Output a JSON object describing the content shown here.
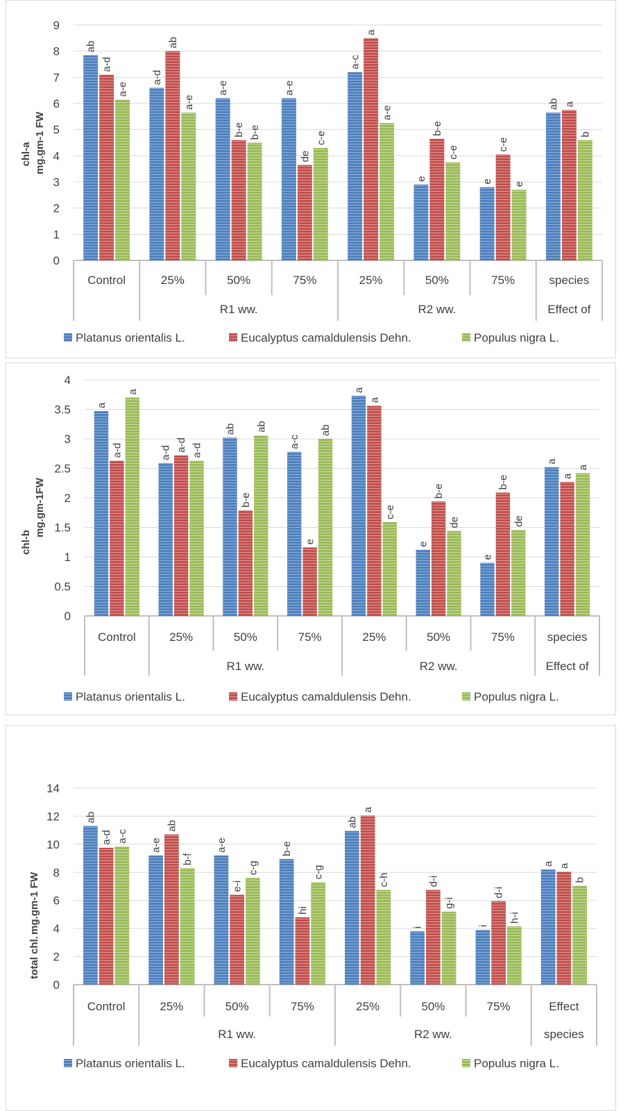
{
  "colors": {
    "platanus": "#4f81bd",
    "eucalyptus": "#c0504d",
    "populus": "#9bbb59"
  },
  "chart_data": [
    {
      "type": "bar",
      "ylabel": "chl-a",
      "unit": "mg.gm-1 FW",
      "ylim": [
        0,
        9
      ],
      "yticks": [
        0,
        1,
        2,
        3,
        4,
        5,
        6,
        7,
        8,
        9
      ],
      "categories": [
        "Control",
        "25%",
        "50%",
        "75%",
        "25%",
        "50%",
        "75%",
        "species"
      ],
      "groups": [
        {
          "label": "R1 ww.",
          "from": 1,
          "to": 3
        },
        {
          "label": "R2 ww.",
          "from": 4,
          "to": 6
        },
        {
          "label": "Effect of",
          "from": 7,
          "to": 7
        }
      ],
      "series": [
        {
          "name": "Platanus orientalis L.",
          "values": [
            7.85,
            6.6,
            6.2,
            6.2,
            7.2,
            2.9,
            2.8,
            5.65
          ],
          "labels": [
            "ab",
            "a-d",
            "a-e",
            "a-e",
            "a-c",
            "e",
            "e",
            "ab"
          ]
        },
        {
          "name": "Eucalyptus camaldulensis Dehn.",
          "values": [
            7.1,
            8.0,
            4.6,
            3.65,
            8.5,
            4.65,
            4.05,
            5.75
          ],
          "labels": [
            "a-d",
            "ab",
            "b-e",
            "de",
            "a",
            "b-e",
            "c-e",
            "a"
          ]
        },
        {
          "name": "Populus nigra L.",
          "values": [
            6.15,
            5.65,
            4.5,
            4.3,
            5.25,
            3.75,
            2.7,
            4.6
          ],
          "labels": [
            "a-e",
            "a-e",
            "b-e",
            "c-e",
            "a-e",
            "c-e",
            "e",
            "b"
          ]
        }
      ]
    },
    {
      "type": "bar",
      "ylabel": "chl-b",
      "unit": "mg.gm-1FW",
      "ylim": [
        0,
        4
      ],
      "yticks": [
        0,
        0.5,
        1,
        1.5,
        2,
        2.5,
        3,
        3.5,
        4
      ],
      "categories": [
        "Control",
        "25%",
        "50%",
        "75%",
        "25%",
        "50%",
        "75%",
        "species"
      ],
      "groups": [
        {
          "label": "R1 ww.",
          "from": 1,
          "to": 3
        },
        {
          "label": "R2 ww.",
          "from": 4,
          "to": 6
        },
        {
          "label": "Effect of",
          "from": 7,
          "to": 7
        }
      ],
      "series": [
        {
          "name": "Platanus orientalis L.",
          "values": [
            3.47,
            2.59,
            3.02,
            2.78,
            3.73,
            1.12,
            0.9,
            2.52
          ],
          "labels": [
            "a",
            "a-d",
            "ab",
            "a-c",
            "a",
            "e",
            "e",
            "a"
          ]
        },
        {
          "name": "Eucalyptus camaldulensis Dehn.",
          "values": [
            2.63,
            2.72,
            1.79,
            1.16,
            3.56,
            1.94,
            2.09,
            2.27
          ],
          "labels": [
            "a-d",
            "a-d",
            "b-e",
            "e",
            "a",
            "b-e",
            "b-e",
            "a"
          ]
        },
        {
          "name": "Populus nigra L.",
          "values": [
            3.7,
            2.63,
            3.06,
            3.0,
            1.59,
            1.44,
            1.46,
            2.42
          ],
          "labels": [
            "a",
            "a-d",
            "ab",
            "ab",
            "c-e",
            "de",
            "de",
            "a"
          ]
        }
      ]
    },
    {
      "type": "bar",
      "ylabel": "total chl.",
      "unit": "mg.gm-1 FW",
      "ylim": [
        0,
        14
      ],
      "yticks": [
        0,
        2,
        4,
        6,
        8,
        10,
        12,
        14
      ],
      "categories": [
        "Control",
        "25%",
        "50%",
        "75%",
        "25%",
        "50%",
        "75%",
        "Effect"
      ],
      "groups": [
        {
          "label": "R1 ww.",
          "from": 1,
          "to": 3
        },
        {
          "label": "R2 ww.",
          "from": 4,
          "to": 6
        },
        {
          "label": "species",
          "from": 7,
          "to": 7
        }
      ],
      "series": [
        {
          "name": "Platanus orientalis L.",
          "values": [
            11.3,
            9.2,
            9.2,
            8.95,
            10.95,
            3.8,
            3.9,
            8.2
          ],
          "labels": [
            "ab",
            "a-e",
            "a-e",
            "b-e",
            "ab",
            "i",
            "i",
            "a"
          ]
        },
        {
          "name": "Eucalyptus camaldulensis Dehn.",
          "values": [
            9.75,
            10.7,
            6.4,
            4.8,
            12.05,
            6.75,
            5.95,
            8.05
          ],
          "labels": [
            "a-d",
            "ab",
            "e-i",
            "hi",
            "a",
            "d-i",
            "d-i",
            "a"
          ]
        },
        {
          "name": "Populus nigra L.",
          "values": [
            9.85,
            8.3,
            7.6,
            7.3,
            6.75,
            5.2,
            4.15,
            7.05
          ],
          "labels": [
            "a-c",
            "b-f",
            "c-g",
            "c-g",
            "c-h",
            "g-i",
            "h-i",
            "b"
          ]
        }
      ]
    }
  ]
}
